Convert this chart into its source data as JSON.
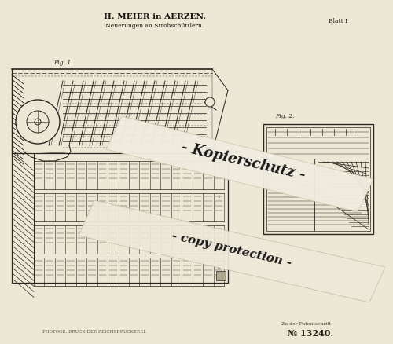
{
  "bg_color": "#ede8d5",
  "title_text": "H. MEIER in AERZEN.",
  "subtitle_text": "Neuerungen an Strohschüttlern.",
  "blatt_text": "Blatt I",
  "bottom_left_text": "PHOTOGR. DRUCK DER REICHSDRUCKEREI.",
  "bottom_right_line1": "Zu der Patentschrift",
  "bottom_right_line2": "№ 13240.",
  "watermark_line1": "- Kopierschutz -",
  "watermark_line2": "- copy protection -",
  "fig1_label": "Fig. 1.",
  "fig2_label": "Fig. 2.",
  "line_color": "#2a2520",
  "watermark_color": "#1a1a1a",
  "title_color": "#1a1510"
}
